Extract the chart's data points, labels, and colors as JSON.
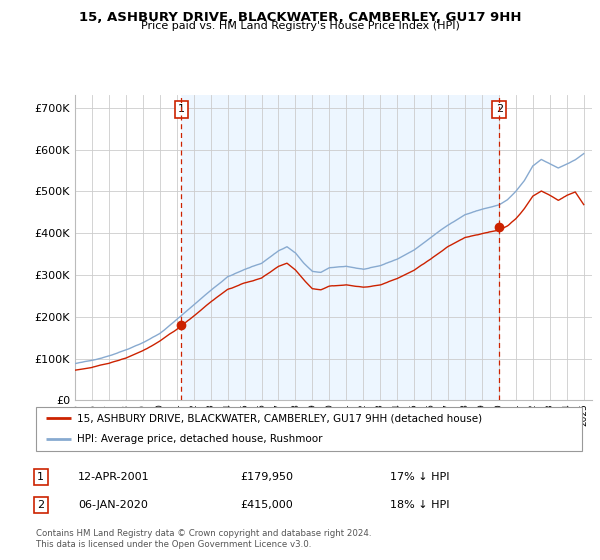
{
  "title": "15, ASHBURY DRIVE, BLACKWATER, CAMBERLEY, GU17 9HH",
  "subtitle": "Price paid vs. HM Land Registry's House Price Index (HPI)",
  "legend_line1": "15, ASHBURY DRIVE, BLACKWATER, CAMBERLEY, GU17 9HH (detached house)",
  "legend_line2": "HPI: Average price, detached house, Rushmoor",
  "annotation1_label": "1",
  "annotation1_date": "12-APR-2001",
  "annotation1_price": "£179,950",
  "annotation1_hpi": "17% ↓ HPI",
  "annotation2_label": "2",
  "annotation2_date": "06-JAN-2020",
  "annotation2_price": "£415,000",
  "annotation2_hpi": "18% ↓ HPI",
  "footnote": "Contains HM Land Registry data © Crown copyright and database right 2024.\nThis data is licensed under the Open Government Licence v3.0.",
  "ytick_values": [
    0,
    100000,
    200000,
    300000,
    400000,
    500000,
    600000,
    700000
  ],
  "ylim": [
    0,
    730000
  ],
  "xlim_start": 1995.0,
  "xlim_end": 2025.5,
  "red_color": "#cc2200",
  "blue_color": "#88aad0",
  "blue_fill_color": "#ddeeff",
  "sale1_x": 2001.28,
  "sale1_y": 179950,
  "sale2_x": 2020.02,
  "sale2_y": 415000,
  "xtick_years": [
    1995,
    1996,
    1997,
    1998,
    1999,
    2000,
    2001,
    2002,
    2003,
    2004,
    2005,
    2006,
    2007,
    2008,
    2009,
    2010,
    2011,
    2012,
    2013,
    2014,
    2015,
    2016,
    2017,
    2018,
    2019,
    2020,
    2021,
    2022,
    2023,
    2024,
    2025
  ]
}
